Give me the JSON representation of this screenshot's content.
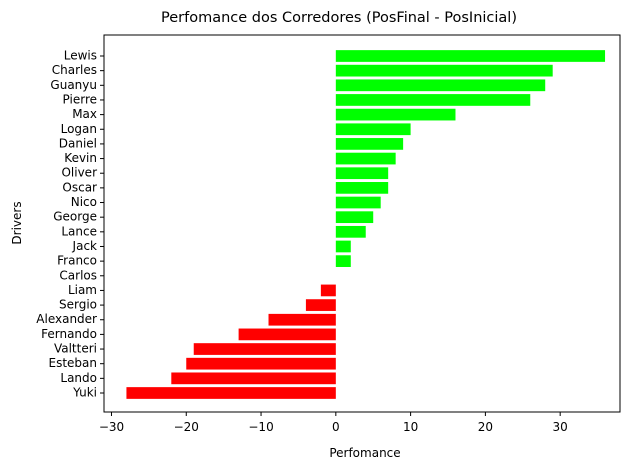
{
  "chart_data": {
    "type": "bar",
    "orientation": "horizontal",
    "title": "Perfomance dos Corredores (PosFinal - PosInicial)",
    "xlabel": "Perfomance",
    "ylabel": "Drivers",
    "xlim": [
      -31,
      38
    ],
    "xticks": [
      -30,
      -20,
      -10,
      0,
      10,
      20,
      30
    ],
    "grid": false,
    "legend": "none",
    "colors": {
      "positive": "#00ff00",
      "negative": "#ff0000"
    },
    "categories": [
      "Lewis",
      "Charles",
      "Guanyu",
      "Pierre",
      "Max",
      "Logan",
      "Daniel",
      "Kevin",
      "Oliver",
      "Oscar",
      "Nico",
      "George",
      "Lance",
      "Jack",
      "Franco",
      "Carlos",
      "Liam",
      "Sergio",
      "Alexander",
      "Fernando",
      "Valtteri",
      "Esteban",
      "Lando",
      "Yuki"
    ],
    "values": [
      36,
      29,
      28,
      26,
      16,
      10,
      9,
      8,
      7,
      7,
      6,
      5,
      4,
      2,
      2,
      0,
      -2,
      -4,
      -9,
      -13,
      -19,
      -20,
      -22,
      -28
    ]
  }
}
